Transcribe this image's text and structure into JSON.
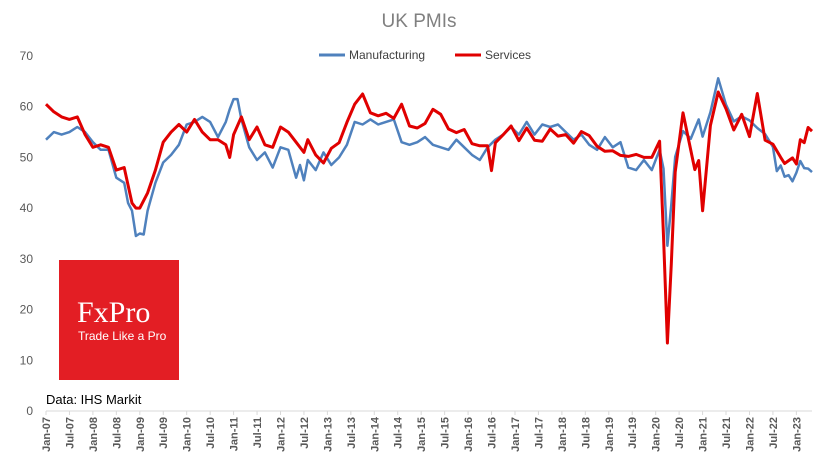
{
  "chart_data": {
    "type": "line",
    "title": "UK PMIs",
    "source_note": "Data: IHS Markit",
    "ylim": [
      0,
      70
    ],
    "y_ticks": [
      0,
      10,
      20,
      30,
      40,
      50,
      60,
      70
    ],
    "x_tick_labels": [
      "Jan-07",
      "Jul-07",
      "Jan-08",
      "Jul-08",
      "Jan-09",
      "Jul-09",
      "Jan-10",
      "Jul-10",
      "Jan-11",
      "Jul-11",
      "Jan-12",
      "Jul-12",
      "Jan-13",
      "Jul-13",
      "Jan-14",
      "Jul-14",
      "Jan-15",
      "Jul-15",
      "Jan-16",
      "Jul-16",
      "Jan-17",
      "Jul-17",
      "Jan-18",
      "Jul-18",
      "Jan-19",
      "Jul-19",
      "Jan-20",
      "Jul-20",
      "Jan-21",
      "Jul-21",
      "Jan-22",
      "Jul-22",
      "Jan-23"
    ],
    "legend_position": "top-center",
    "grid": false,
    "series": [
      {
        "name": "Manufacturing",
        "color": "#4F81BD",
        "points": [
          [
            "Jan-07",
            53.5
          ],
          [
            "Mar-07",
            55.0
          ],
          [
            "May-07",
            54.5
          ],
          [
            "Jul-07",
            55.0
          ],
          [
            "Sep-07",
            56.0
          ],
          [
            "Nov-07",
            55.0
          ],
          [
            "Jan-08",
            53.0
          ],
          [
            "Mar-08",
            51.5
          ],
          [
            "May-08",
            51.5
          ],
          [
            "Jul-08",
            46.0
          ],
          [
            "Sep-08",
            45.0
          ],
          [
            "Oct-08",
            41.0
          ],
          [
            "Nov-08",
            39.5
          ],
          [
            "Dec-08",
            34.5
          ],
          [
            "Jan-09",
            35.0
          ],
          [
            "Feb-09",
            34.8
          ],
          [
            "Mar-09",
            39.5
          ],
          [
            "May-09",
            45.0
          ],
          [
            "Jul-09",
            49.0
          ],
          [
            "Sep-09",
            50.5
          ],
          [
            "Nov-09",
            52.5
          ],
          [
            "Jan-10",
            56.5
          ],
          [
            "Mar-10",
            57.0
          ],
          [
            "May-10",
            58.0
          ],
          [
            "Jul-10",
            57.0
          ],
          [
            "Sep-10",
            54.0
          ],
          [
            "Nov-10",
            57.0
          ],
          [
            "Dec-10",
            59.5
          ],
          [
            "Jan-11",
            61.5
          ],
          [
            "Feb-11",
            61.5
          ],
          [
            "Mar-11",
            57.5
          ],
          [
            "May-11",
            52.0
          ],
          [
            "Jul-11",
            49.5
          ],
          [
            "Sep-11",
            51.0
          ],
          [
            "Nov-11",
            48.0
          ],
          [
            "Jan-12",
            52.0
          ],
          [
            "Mar-12",
            51.5
          ],
          [
            "May-12",
            46.0
          ],
          [
            "Jun-12",
            48.5
          ],
          [
            "Jul-12",
            45.5
          ],
          [
            "Aug-12",
            49.5
          ],
          [
            "Oct-12",
            47.5
          ],
          [
            "Dec-12",
            51.0
          ],
          [
            "Feb-13",
            48.5
          ],
          [
            "Apr-13",
            50.0
          ],
          [
            "Jun-13",
            52.5
          ],
          [
            "Aug-13",
            57.0
          ],
          [
            "Oct-13",
            56.5
          ],
          [
            "Dec-13",
            57.5
          ],
          [
            "Feb-14",
            56.5
          ],
          [
            "Apr-14",
            57.0
          ],
          [
            "Jun-14",
            57.5
          ],
          [
            "Aug-14",
            53.0
          ],
          [
            "Oct-14",
            52.5
          ],
          [
            "Dec-14",
            53.0
          ],
          [
            "Feb-15",
            54.0
          ],
          [
            "Apr-15",
            52.5
          ],
          [
            "Jun-15",
            52.0
          ],
          [
            "Aug-15",
            51.5
          ],
          [
            "Oct-15",
            53.5
          ],
          [
            "Dec-15",
            52.0
          ],
          [
            "Feb-16",
            50.5
          ],
          [
            "Apr-16",
            49.5
          ],
          [
            "Jun-16",
            52.0
          ],
          [
            "Aug-16",
            53.5
          ],
          [
            "Oct-16",
            54.5
          ],
          [
            "Dec-16",
            56.0
          ],
          [
            "Feb-17",
            54.5
          ],
          [
            "Apr-17",
            57.0
          ],
          [
            "Jun-17",
            54.5
          ],
          [
            "Aug-17",
            56.5
          ],
          [
            "Oct-17",
            56.0
          ],
          [
            "Dec-17",
            56.5
          ],
          [
            "Feb-18",
            55.0
          ],
          [
            "Apr-18",
            53.5
          ],
          [
            "Jun-18",
            54.5
          ],
          [
            "Aug-18",
            52.5
          ],
          [
            "Oct-18",
            51.5
          ],
          [
            "Dec-18",
            54.0
          ],
          [
            "Feb-19",
            52.0
          ],
          [
            "Apr-19",
            53.0
          ],
          [
            "Jun-19",
            48.0
          ],
          [
            "Aug-19",
            47.5
          ],
          [
            "Oct-19",
            49.5
          ],
          [
            "Dec-19",
            47.5
          ],
          [
            "Feb-20",
            51.5
          ],
          [
            "Mar-20",
            47.8
          ],
          [
            "Apr-20",
            32.6
          ],
          [
            "May-20",
            40.7
          ],
          [
            "Jun-20",
            50.1
          ],
          [
            "Aug-20",
            55.2
          ],
          [
            "Oct-20",
            53.7
          ],
          [
            "Dec-20",
            57.5
          ],
          [
            "Jan-21",
            54.1
          ],
          [
            "Mar-21",
            58.9
          ],
          [
            "May-21",
            65.6
          ],
          [
            "Jul-21",
            60.4
          ],
          [
            "Sep-21",
            57.1
          ],
          [
            "Nov-21",
            58.1
          ],
          [
            "Jan-22",
            57.3
          ],
          [
            "Mar-22",
            55.8
          ],
          [
            "May-22",
            54.6
          ],
          [
            "Jul-22",
            52.1
          ],
          [
            "Aug-22",
            47.3
          ],
          [
            "Sep-22",
            48.4
          ],
          [
            "Oct-22",
            46.2
          ],
          [
            "Nov-22",
            46.5
          ],
          [
            "Dec-22",
            45.3
          ],
          [
            "Jan-23",
            47.0
          ],
          [
            "Feb-23",
            49.3
          ],
          [
            "Mar-23",
            47.9
          ],
          [
            "Apr-23",
            47.8
          ],
          [
            "May-23",
            47.1
          ]
        ]
      },
      {
        "name": "Services",
        "color": "#E00000",
        "points": [
          [
            "Jan-07",
            60.5
          ],
          [
            "Mar-07",
            59.0
          ],
          [
            "May-07",
            58.0
          ],
          [
            "Jul-07",
            57.5
          ],
          [
            "Sep-07",
            58.0
          ],
          [
            "Nov-07",
            54.5
          ],
          [
            "Jan-08",
            52.0
          ],
          [
            "Mar-08",
            52.5
          ],
          [
            "May-08",
            52.0
          ],
          [
            "Jul-08",
            47.5
          ],
          [
            "Sep-08",
            48.0
          ],
          [
            "Oct-08",
            44.5
          ],
          [
            "Nov-08",
            41.0
          ],
          [
            "Dec-08",
            40.0
          ],
          [
            "Jan-09",
            40.0
          ],
          [
            "Mar-09",
            43.0
          ],
          [
            "May-09",
            47.5
          ],
          [
            "Jul-09",
            53.0
          ],
          [
            "Sep-09",
            55.0
          ],
          [
            "Nov-09",
            56.5
          ],
          [
            "Jan-10",
            55.0
          ],
          [
            "Mar-10",
            57.5
          ],
          [
            "May-10",
            55.0
          ],
          [
            "Jul-10",
            53.5
          ],
          [
            "Sep-10",
            53.5
          ],
          [
            "Nov-10",
            52.5
          ],
          [
            "Dec-10",
            50.0
          ],
          [
            "Jan-11",
            54.5
          ],
          [
            "Mar-11",
            58.0
          ],
          [
            "May-11",
            53.5
          ],
          [
            "Jul-11",
            56.0
          ],
          [
            "Sep-11",
            52.5
          ],
          [
            "Nov-11",
            52.0
          ],
          [
            "Jan-12",
            56.0
          ],
          [
            "Mar-12",
            55.0
          ],
          [
            "May-12",
            53.0
          ],
          [
            "Jul-12",
            51.0
          ],
          [
            "Aug-12",
            53.5
          ],
          [
            "Oct-12",
            50.5
          ],
          [
            "Dec-12",
            48.9
          ],
          [
            "Feb-13",
            51.8
          ],
          [
            "Apr-13",
            52.9
          ],
          [
            "Jun-13",
            56.9
          ],
          [
            "Aug-13",
            60.5
          ],
          [
            "Oct-13",
            62.5
          ],
          [
            "Dec-13",
            58.8
          ],
          [
            "Feb-14",
            58.2
          ],
          [
            "Apr-14",
            58.7
          ],
          [
            "Jun-14",
            57.7
          ],
          [
            "Aug-14",
            60.5
          ],
          [
            "Oct-14",
            56.2
          ],
          [
            "Dec-14",
            55.8
          ],
          [
            "Feb-15",
            56.7
          ],
          [
            "Apr-15",
            59.5
          ],
          [
            "Jun-15",
            58.5
          ],
          [
            "Aug-15",
            55.6
          ],
          [
            "Oct-15",
            54.9
          ],
          [
            "Dec-15",
            55.5
          ],
          [
            "Feb-16",
            52.7
          ],
          [
            "Apr-16",
            52.3
          ],
          [
            "Jun-16",
            52.3
          ],
          [
            "Jul-16",
            47.4
          ],
          [
            "Aug-16",
            52.9
          ],
          [
            "Oct-16",
            54.5
          ],
          [
            "Dec-16",
            56.2
          ],
          [
            "Feb-17",
            53.3
          ],
          [
            "Apr-17",
            55.8
          ],
          [
            "Jun-17",
            53.4
          ],
          [
            "Aug-17",
            53.2
          ],
          [
            "Oct-17",
            55.6
          ],
          [
            "Dec-17",
            54.2
          ],
          [
            "Feb-18",
            54.5
          ],
          [
            "Apr-18",
            52.8
          ],
          [
            "Jun-18",
            55.1
          ],
          [
            "Aug-18",
            54.3
          ],
          [
            "Oct-18",
            52.2
          ],
          [
            "Dec-18",
            51.2
          ],
          [
            "Feb-19",
            51.3
          ],
          [
            "Apr-19",
            50.4
          ],
          [
            "Jun-19",
            50.2
          ],
          [
            "Aug-19",
            50.6
          ],
          [
            "Oct-19",
            50.0
          ],
          [
            "Dec-19",
            50.0
          ],
          [
            "Feb-20",
            53.2
          ],
          [
            "Mar-20",
            34.5
          ],
          [
            "Apr-20",
            13.4
          ],
          [
            "May-20",
            29.0
          ],
          [
            "Jun-20",
            47.1
          ],
          [
            "Aug-20",
            58.8
          ],
          [
            "Oct-20",
            51.4
          ],
          [
            "Nov-20",
            47.6
          ],
          [
            "Dec-20",
            49.4
          ],
          [
            "Jan-21",
            39.5
          ],
          [
            "Mar-21",
            56.3
          ],
          [
            "May-21",
            62.9
          ],
          [
            "Jul-21",
            59.6
          ],
          [
            "Sep-21",
            55.4
          ],
          [
            "Nov-21",
            58.5
          ],
          [
            "Jan-22",
            54.1
          ],
          [
            "Mar-22",
            62.6
          ],
          [
            "May-22",
            53.4
          ],
          [
            "Jul-22",
            52.6
          ],
          [
            "Sep-22",
            50.0
          ],
          [
            "Oct-22",
            48.8
          ],
          [
            "Dec-22",
            49.9
          ],
          [
            "Jan-23",
            48.7
          ],
          [
            "Feb-23",
            53.5
          ],
          [
            "Mar-23",
            52.9
          ],
          [
            "Apr-23",
            55.9
          ],
          [
            "May-23",
            55.2
          ]
        ]
      }
    ]
  },
  "logo": {
    "wordmark": "FxPro",
    "tagline": "Trade Like a Pro",
    "color": "#E31E24"
  }
}
